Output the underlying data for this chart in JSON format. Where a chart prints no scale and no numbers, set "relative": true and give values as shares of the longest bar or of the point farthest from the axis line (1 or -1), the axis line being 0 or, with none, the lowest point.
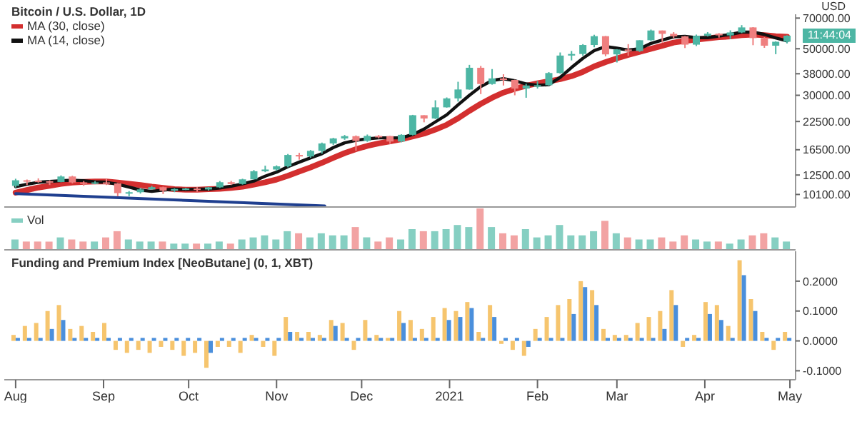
{
  "chart_data": [
    {
      "type": "candlestick",
      "title": "Bitcoin / U.S. Dollar, 1D",
      "ylabel": "USD",
      "legend": "top left",
      "log": "y",
      "tick_labels": "y",
      "annotations": [
        "11:44:04"
      ],
      "xlim": [
        "2020-07-28",
        "2021-05-03"
      ],
      "yticks": [
        {
          "value": 10100,
          "label": "10100.00"
        },
        {
          "value": 12500,
          "label": "12500.00"
        },
        {
          "value": 16500,
          "label": "16500.00"
        },
        {
          "value": 22500,
          "label": "22500.00"
        },
        {
          "value": 30000,
          "label": "30000.00"
        },
        {
          "value": 38000,
          "label": "38000.00"
        },
        {
          "value": 50000,
          "label": "50000.00"
        },
        {
          "value": 70000,
          "label": "70000.00"
        }
      ],
      "x": [
        "2020-08-01",
        "2020-08-05",
        "2020-08-09",
        "2020-08-13",
        "2020-08-17",
        "2020-08-21",
        "2020-08-25",
        "2020-08-29",
        "2020-09-02",
        "2020-09-06",
        "2020-09-10",
        "2020-09-14",
        "2020-09-18",
        "2020-09-22",
        "2020-09-26",
        "2020-09-30",
        "2020-10-04",
        "2020-10-08",
        "2020-10-12",
        "2020-10-16",
        "2020-10-20",
        "2020-10-24",
        "2020-10-28",
        "2020-11-01",
        "2020-11-05",
        "2020-11-09",
        "2020-11-13",
        "2020-11-17",
        "2020-11-21",
        "2020-11-25",
        "2020-11-29",
        "2020-12-03",
        "2020-12-07",
        "2020-12-11",
        "2020-12-15",
        "2020-12-19",
        "2020-12-23",
        "2020-12-27",
        "2020-12-31",
        "2021-01-04",
        "2021-01-08",
        "2021-01-12",
        "2021-01-16",
        "2021-01-20",
        "2021-01-24",
        "2021-01-28",
        "2021-02-01",
        "2021-02-05",
        "2021-02-09",
        "2021-02-13",
        "2021-02-17",
        "2021-02-21",
        "2021-02-25",
        "2021-03-01",
        "2021-03-05",
        "2021-03-09",
        "2021-03-13",
        "2021-03-17",
        "2021-03-21",
        "2021-03-25",
        "2021-03-29",
        "2021-04-02",
        "2021-04-06",
        "2021-04-10",
        "2021-04-14",
        "2021-04-18",
        "2021-04-22",
        "2021-04-26",
        "2021-04-30"
      ],
      "ohlc": [
        [
          11100,
          12000,
          10900,
          11800
        ],
        [
          11800,
          11900,
          11200,
          11750
        ],
        [
          11750,
          12050,
          11500,
          11680
        ],
        [
          11680,
          11800,
          11200,
          11580
        ],
        [
          11580,
          12450,
          11550,
          12300
        ],
        [
          12300,
          12400,
          11400,
          11520
        ],
        [
          11520,
          11700,
          11100,
          11350
        ],
        [
          11350,
          11700,
          11300,
          11530
        ],
        [
          11530,
          12000,
          11200,
          11400
        ],
        [
          11400,
          11450,
          9900,
          10250
        ],
        [
          10250,
          10480,
          9900,
          10350
        ],
        [
          10350,
          10800,
          10200,
          10680
        ],
        [
          10680,
          11100,
          10650,
          10940
        ],
        [
          10940,
          11000,
          10150,
          10530
        ],
        [
          10530,
          10800,
          10350,
          10730
        ],
        [
          10730,
          10850,
          10600,
          10780
        ],
        [
          10780,
          10950,
          10400,
          10670
        ],
        [
          10670,
          10950,
          10550,
          10920
        ],
        [
          10920,
          11700,
          10850,
          11550
        ],
        [
          11550,
          11720,
          11200,
          11330
        ],
        [
          11330,
          12000,
          11250,
          11920
        ],
        [
          11920,
          13200,
          11900,
          13030
        ],
        [
          13030,
          13850,
          12900,
          13280
        ],
        [
          13280,
          13900,
          13100,
          13750
        ],
        [
          13750,
          15750,
          13600,
          15580
        ],
        [
          15580,
          15950,
          14800,
          15330
        ],
        [
          15330,
          16450,
          15100,
          16300
        ],
        [
          16300,
          17850,
          15800,
          17680
        ],
        [
          17680,
          18800,
          17400,
          18680
        ],
        [
          18680,
          19400,
          18400,
          19150
        ],
        [
          19150,
          19300,
          16300,
          18180
        ],
        [
          18180,
          19500,
          18000,
          19200
        ],
        [
          19200,
          19400,
          18700,
          19180
        ],
        [
          19180,
          19200,
          17600,
          18060
        ],
        [
          18060,
          19550,
          17900,
          19440
        ],
        [
          19440,
          24200,
          19300,
          24100
        ],
        [
          24100,
          24100,
          22300,
          23250
        ],
        [
          23250,
          28400,
          23100,
          26280
        ],
        [
          26280,
          29300,
          26200,
          28990
        ],
        [
          28990,
          34800,
          28000,
          31970
        ],
        [
          31970,
          41900,
          31900,
          40580
        ],
        [
          40580,
          41400,
          30400,
          33950
        ],
        [
          33950,
          40000,
          33700,
          36100
        ],
        [
          36100,
          37800,
          33400,
          35500
        ],
        [
          35500,
          35600,
          30000,
          32290
        ],
        [
          32290,
          34000,
          29200,
          33400
        ],
        [
          33400,
          35000,
          32300,
          33500
        ],
        [
          33500,
          38700,
          33400,
          38300
        ],
        [
          38300,
          48000,
          38000,
          46400
        ],
        [
          46400,
          48800,
          44000,
          47200
        ],
        [
          47200,
          52600,
          46300,
          52100
        ],
        [
          52100,
          58300,
          50800,
          57400
        ],
        [
          57400,
          57500,
          46000,
          47000
        ],
        [
          47000,
          49800,
          43000,
          49600
        ],
        [
          49600,
          52600,
          46300,
          48800
        ],
        [
          48800,
          54900,
          48300,
          54900
        ],
        [
          54900,
          61700,
          54500,
          61100
        ],
        [
          61100,
          61100,
          53400,
          58900
        ],
        [
          58900,
          60000,
          56300,
          57300
        ],
        [
          57300,
          57500,
          50400,
          52300
        ],
        [
          52300,
          58400,
          51500,
          57600
        ],
        [
          57600,
          60000,
          57200,
          59000
        ],
        [
          59000,
          59400,
          56500,
          57900
        ],
        [
          57900,
          61200,
          55600,
          59800
        ],
        [
          59800,
          64800,
          59400,
          63200
        ],
        [
          63200,
          63400,
          52000,
          56200
        ],
        [
          56200,
          56800,
          50500,
          51700
        ],
        [
          51700,
          54300,
          47100,
          54000
        ],
        [
          54000,
          58000,
          53000,
          57700
        ]
      ],
      "series": [
        {
          "type": "line",
          "name": "MA (30, close)",
          "color": "#d32f2f",
          "values": [
            10300,
            10600,
            10900,
            11100,
            11350,
            11500,
            11600,
            11650,
            11650,
            11500,
            11350,
            11200,
            11000,
            10850,
            10700,
            10650,
            10650,
            10700,
            10750,
            10850,
            11000,
            11250,
            11550,
            11900,
            12400,
            13000,
            13600,
            14300,
            15100,
            15900,
            16600,
            17200,
            17700,
            18100,
            18500,
            19100,
            19700,
            20600,
            21700,
            23300,
            25300,
            27300,
            29200,
            30900,
            32200,
            33300,
            34200,
            35000,
            35800,
            37000,
            38800,
            41200,
            43200,
            45000,
            46700,
            48300,
            50000,
            51700,
            53500,
            54500,
            55300,
            56000,
            56800,
            57200,
            58000,
            58400,
            58000,
            57400,
            57000
          ]
        },
        {
          "type": "line",
          "name": "MA (14, close)",
          "color": "#111111",
          "values": [
            11000,
            11300,
            11550,
            11650,
            11750,
            11800,
            11750,
            11600,
            11550,
            11300,
            10950,
            10600,
            10450,
            10600,
            10700,
            10650,
            10700,
            10700,
            10850,
            11050,
            11350,
            11700,
            12350,
            12900,
            13700,
            14400,
            15100,
            15800,
            16900,
            17800,
            18300,
            18600,
            18800,
            18800,
            18800,
            19500,
            20700,
            22400,
            24200,
            27000,
            30000,
            33000,
            35300,
            36000,
            35200,
            34000,
            33500,
            33700,
            36500,
            40700,
            45000,
            49000,
            51200,
            50300,
            49300,
            50000,
            53000,
            55000,
            57000,
            57300,
            56500,
            56500,
            57500,
            58500,
            60000,
            60000,
            58500,
            56300,
            54500
          ]
        },
        {
          "type": "line",
          "color": "#1f3f8f",
          "x": [
            "2020-08-01",
            "2020-11-18"
          ],
          "values": [
            10200,
            8900
          ]
        }
      ],
      "ylim": [
        8800,
        73000
      ]
    },
    {
      "type": "bar",
      "relative": true,
      "legend": "top left",
      "tick_labels": false,
      "x": [
        "2020-08-01",
        "2020-08-05",
        "2020-08-09",
        "2020-08-13",
        "2020-08-17",
        "2020-08-21",
        "2020-08-25",
        "2020-08-29",
        "2020-09-02",
        "2020-09-06",
        "2020-09-10",
        "2020-09-14",
        "2020-09-18",
        "2020-09-22",
        "2020-09-26",
        "2020-09-30",
        "2020-10-04",
        "2020-10-08",
        "2020-10-12",
        "2020-10-16",
        "2020-10-20",
        "2020-10-24",
        "2020-10-28",
        "2020-11-01",
        "2020-11-05",
        "2020-11-09",
        "2020-11-13",
        "2020-11-17",
        "2020-11-21",
        "2020-11-25",
        "2020-11-29",
        "2020-12-03",
        "2020-12-07",
        "2020-12-11",
        "2020-12-15",
        "2020-12-19",
        "2020-12-23",
        "2020-12-27",
        "2020-12-31",
        "2021-01-04",
        "2021-01-08",
        "2021-01-12",
        "2021-01-16",
        "2021-01-20",
        "2021-01-24",
        "2021-01-28",
        "2021-02-01",
        "2021-02-05",
        "2021-02-09",
        "2021-02-13",
        "2021-02-17",
        "2021-02-21",
        "2021-02-25",
        "2021-03-01",
        "2021-03-05",
        "2021-03-09",
        "2021-03-13",
        "2021-03-17",
        "2021-03-21",
        "2021-03-25",
        "2021-03-29",
        "2021-04-02",
        "2021-04-06",
        "2021-04-10",
        "2021-04-14",
        "2021-04-18",
        "2021-04-22",
        "2021-04-26",
        "2021-04-30"
      ],
      "series": [
        {
          "name": "Vol",
          "color": "#86cfc2",
          "values": [
            0.25,
            0.2,
            0.2,
            0.2,
            0.3,
            0.25,
            0.2,
            0.2,
            0.3,
            0.45,
            0.25,
            0.2,
            0.2,
            0.2,
            0.15,
            0.15,
            0.15,
            0.15,
            0.2,
            0.15,
            0.25,
            0.3,
            0.35,
            0.25,
            0.45,
            0.4,
            0.3,
            0.4,
            0.35,
            0.35,
            0.55,
            0.3,
            0.2,
            0.3,
            0.25,
            0.5,
            0.45,
            0.45,
            0.5,
            0.6,
            0.55,
            1,
            0.55,
            0.4,
            0.35,
            0.5,
            0.3,
            0.35,
            0.6,
            0.35,
            0.35,
            0.45,
            0.7,
            0.4,
            0.3,
            0.25,
            0.25,
            0.3,
            0.2,
            0.35,
            0.25,
            0.2,
            0.2,
            0.15,
            0.25,
            0.35,
            0.4,
            0.3,
            0.2
          ],
          "colors": [
            "#86cfc2",
            "#f2a3a3",
            "#f2a3a3",
            "#f2a3a3",
            "#86cfc2",
            "#f2a3a3",
            "#f2a3a3",
            "#86cfc2",
            "#f2a3a3",
            "#f2a3a3",
            "#86cfc2",
            "#86cfc2",
            "#86cfc2",
            "#f2a3a3",
            "#86cfc2",
            "#86cfc2",
            "#f2a3a3",
            "#86cfc2",
            "#86cfc2",
            "#f2a3a3",
            "#86cfc2",
            "#86cfc2",
            "#86cfc2",
            "#86cfc2",
            "#86cfc2",
            "#f2a3a3",
            "#86cfc2",
            "#86cfc2",
            "#86cfc2",
            "#86cfc2",
            "#f2a3a3",
            "#86cfc2",
            "#f2a3a3",
            "#f2a3a3",
            "#86cfc2",
            "#86cfc2",
            "#f2a3a3",
            "#86cfc2",
            "#86cfc2",
            "#86cfc2",
            "#86cfc2",
            "#f2a3a3",
            "#86cfc2",
            "#f2a3a3",
            "#f2a3a3",
            "#86cfc2",
            "#86cfc2",
            "#86cfc2",
            "#86cfc2",
            "#86cfc2",
            "#86cfc2",
            "#86cfc2",
            "#f2a3a3",
            "#86cfc2",
            "#f2a3a3",
            "#86cfc2",
            "#86cfc2",
            "#f2a3a3",
            "#f2a3a3",
            "#f2a3a3",
            "#86cfc2",
            "#86cfc2",
            "#f2a3a3",
            "#86cfc2",
            "#86cfc2",
            "#f2a3a3",
            "#f2a3a3",
            "#86cfc2",
            "#86cfc2"
          ]
        }
      ],
      "xlim": [
        "2020-07-28",
        "2021-05-03"
      ]
    },
    {
      "type": "bar",
      "title": "Funding and Premium Index [NeoButane] (0, 1, XBT)",
      "x": [
        "2020-08-01",
        "2020-08-05",
        "2020-08-09",
        "2020-08-13",
        "2020-08-17",
        "2020-08-21",
        "2020-08-25",
        "2020-08-29",
        "2020-09-02",
        "2020-09-06",
        "2020-09-10",
        "2020-09-14",
        "2020-09-18",
        "2020-09-22",
        "2020-09-26",
        "2020-09-30",
        "2020-10-04",
        "2020-10-08",
        "2020-10-12",
        "2020-10-16",
        "2020-10-20",
        "2020-10-24",
        "2020-10-28",
        "2020-11-01",
        "2020-11-05",
        "2020-11-09",
        "2020-11-13",
        "2020-11-17",
        "2020-11-21",
        "2020-11-25",
        "2020-11-29",
        "2020-12-03",
        "2020-12-07",
        "2020-12-11",
        "2020-12-15",
        "2020-12-19",
        "2020-12-23",
        "2020-12-27",
        "2020-12-31",
        "2021-01-04",
        "2021-01-08",
        "2021-01-12",
        "2021-01-16",
        "2021-01-20",
        "2021-01-24",
        "2021-01-28",
        "2021-02-01",
        "2021-02-05",
        "2021-02-09",
        "2021-02-13",
        "2021-02-17",
        "2021-02-21",
        "2021-02-25",
        "2021-03-01",
        "2021-03-05",
        "2021-03-09",
        "2021-03-13",
        "2021-03-17",
        "2021-03-21",
        "2021-03-25",
        "2021-03-29",
        "2021-04-02",
        "2021-04-06",
        "2021-04-10",
        "2021-04-14",
        "2021-04-18",
        "2021-04-22",
        "2021-04-26",
        "2021-04-30"
      ],
      "series": [
        {
          "color": "#f6c56e",
          "values": [
            0.02,
            0.05,
            0.06,
            0.1,
            0.12,
            0.04,
            0.05,
            0.03,
            0.06,
            -0.03,
            -0.04,
            -0.03,
            -0.04,
            -0.02,
            -0.03,
            -0.05,
            -0.04,
            -0.09,
            -0.02,
            -0.02,
            -0.04,
            0.02,
            -0.02,
            -0.05,
            0.08,
            0.03,
            0.03,
            0.02,
            0.07,
            0.06,
            -0.03,
            0.07,
            0.02,
            0.01,
            0.1,
            0.07,
            0.04,
            0.08,
            0.11,
            0.1,
            0.13,
            0.03,
            0.12,
            -0.01,
            -0.03,
            -0.05,
            0.04,
            0.08,
            0.12,
            0.14,
            0.2,
            0.17,
            0.04,
            0.02,
            0.02,
            0.06,
            0.08,
            0.1,
            0.17,
            -0.02,
            0.02,
            0.13,
            0.12,
            0.05,
            0.27,
            0.14,
            0.03,
            -0.03,
            0.03
          ]
        },
        {
          "color": "#4a8fdc",
          "values": [
            0.01,
            0.01,
            0.01,
            0.04,
            0.07,
            0.01,
            0.01,
            0.01,
            0.01,
            0.01,
            0.01,
            0.01,
            0.01,
            0.01,
            0.01,
            0.01,
            0.01,
            -0.04,
            0.01,
            0.01,
            0.01,
            0.01,
            0.01,
            0.01,
            0.03,
            0.01,
            0.01,
            0.01,
            0.05,
            0.01,
            0.01,
            0.01,
            0.01,
            0.01,
            0.06,
            0.01,
            0.01,
            0.01,
            0.07,
            0.08,
            0.11,
            0.01,
            0.08,
            0.01,
            0.01,
            -0.02,
            0.01,
            0.01,
            0.01,
            0.09,
            0.18,
            0.12,
            0.01,
            0.01,
            0.01,
            0.01,
            0.01,
            0.04,
            0.12,
            0.01,
            0.01,
            0.09,
            0.07,
            0.01,
            0.22,
            0.1,
            0.01,
            0.01,
            0.01
          ]
        }
      ],
      "ylim": [
        -0.13,
        0.3
      ],
      "yticks": [
        {
          "value": -0.1,
          "label": "-0.1000"
        },
        {
          "value": 0,
          "label": "0.0000"
        },
        {
          "value": 0.1,
          "label": "0.1000"
        },
        {
          "value": 0.2,
          "label": "0.2000"
        }
      ],
      "xlim": [
        "2020-07-28",
        "2021-05-03"
      ],
      "xticks": [
        {
          "value": "2020-08-01",
          "label": "Aug"
        },
        {
          "value": "2020-09-01",
          "label": "Sep"
        },
        {
          "value": "2020-10-01",
          "label": "Oct"
        },
        {
          "value": "2020-11-01",
          "label": "Nov"
        },
        {
          "value": "2020-12-01",
          "label": "Dec"
        },
        {
          "value": "2021-01-01",
          "label": "2021"
        },
        {
          "value": "2021-02-01",
          "label": "Feb"
        },
        {
          "value": "2021-03-01",
          "label": "Mar"
        },
        {
          "value": "2021-04-01",
          "label": "Apr"
        },
        {
          "value": "2021-05-01",
          "label": "May"
        }
      ]
    }
  ]
}
